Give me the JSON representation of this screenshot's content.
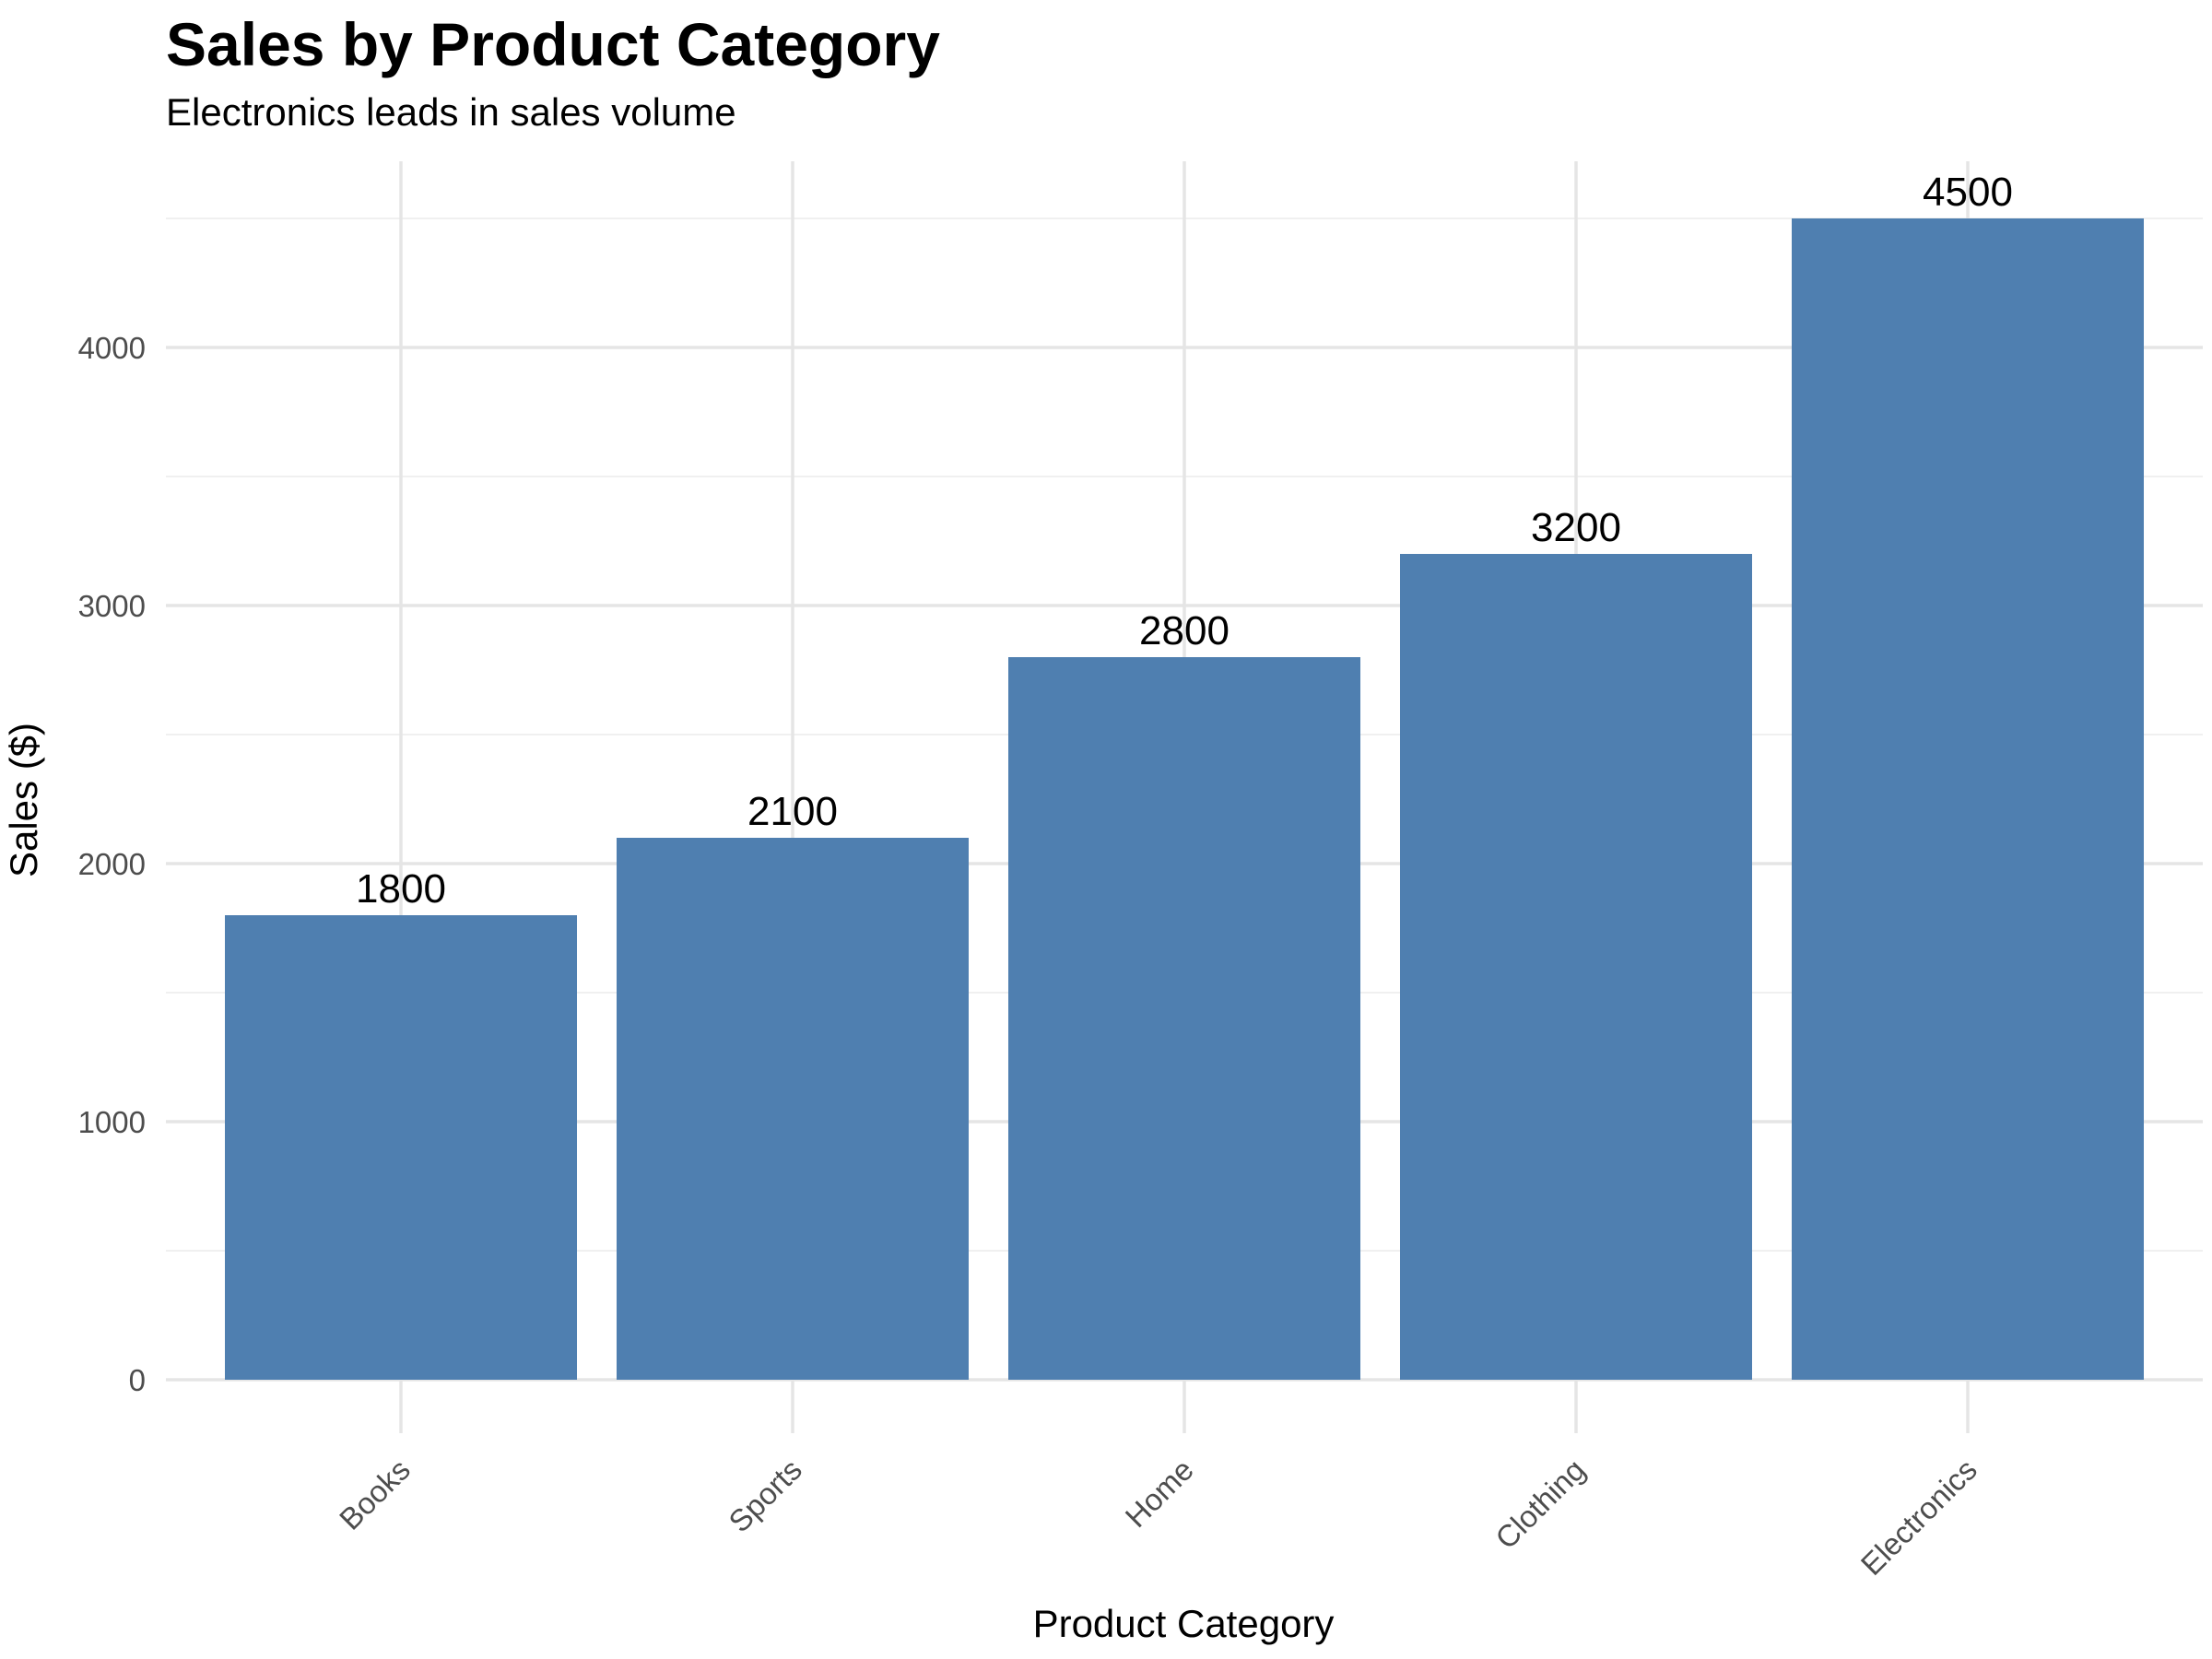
{
  "chart_data": {
    "type": "bar",
    "title": "Sales by Product Category",
    "subtitle": "Electronics leads in sales volume",
    "xlabel": "Product Category",
    "ylabel": "Sales ($)",
    "categories": [
      "Books",
      "Sports",
      "Home",
      "Clothing",
      "Electronics"
    ],
    "values": [
      1800,
      2100,
      2800,
      3200,
      4500
    ],
    "data_labels": [
      "1800",
      "2100",
      "2800",
      "3200",
      "4500"
    ],
    "ylim": [
      0,
      4725
    ],
    "y_ticks": [
      0,
      1000,
      2000,
      3000,
      4000
    ],
    "y_tick_labels": [
      "0",
      "1000",
      "2000",
      "3000",
      "4000"
    ],
    "grid": true,
    "legend": "none",
    "colors": {
      "bar": "#4F7FB0",
      "grid_major": "#E5E5E5",
      "grid_minor": "#F0F0F0",
      "tick_text": "#4D4D4D",
      "text": "#000000"
    }
  }
}
